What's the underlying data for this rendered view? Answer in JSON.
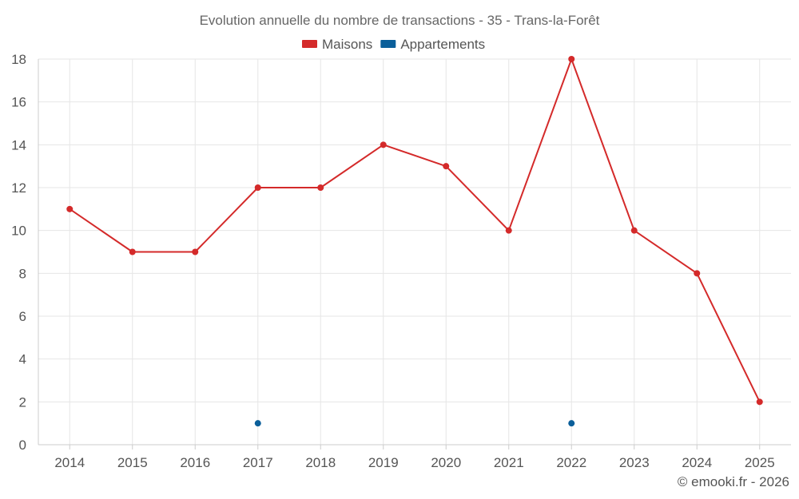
{
  "chart_data": {
    "type": "line",
    "title": "Evolution annuelle du nombre de transactions - 35 - Trans-la-Forêt",
    "categories": [
      "2014",
      "2015",
      "2016",
      "2017",
      "2018",
      "2019",
      "2020",
      "2021",
      "2022",
      "2023",
      "2024",
      "2025"
    ],
    "series": [
      {
        "name": "Maisons",
        "color": "#d42a2a",
        "style": "line",
        "values": [
          11,
          9,
          9,
          12,
          12,
          14,
          13,
          10,
          18,
          10,
          8,
          2
        ]
      },
      {
        "name": "Appartements",
        "color": "#0b5f9a",
        "style": "points",
        "values": [
          null,
          null,
          null,
          1,
          null,
          null,
          null,
          null,
          1,
          null,
          null,
          null
        ]
      }
    ],
    "ylim": [
      0,
      18
    ],
    "yticks": [
      0,
      2,
      4,
      6,
      8,
      10,
      12,
      14,
      16,
      18
    ],
    "grid": true,
    "legend_position": "top-center",
    "xlabel": "",
    "ylabel": ""
  },
  "footer": "© emooki.fr - 2026"
}
